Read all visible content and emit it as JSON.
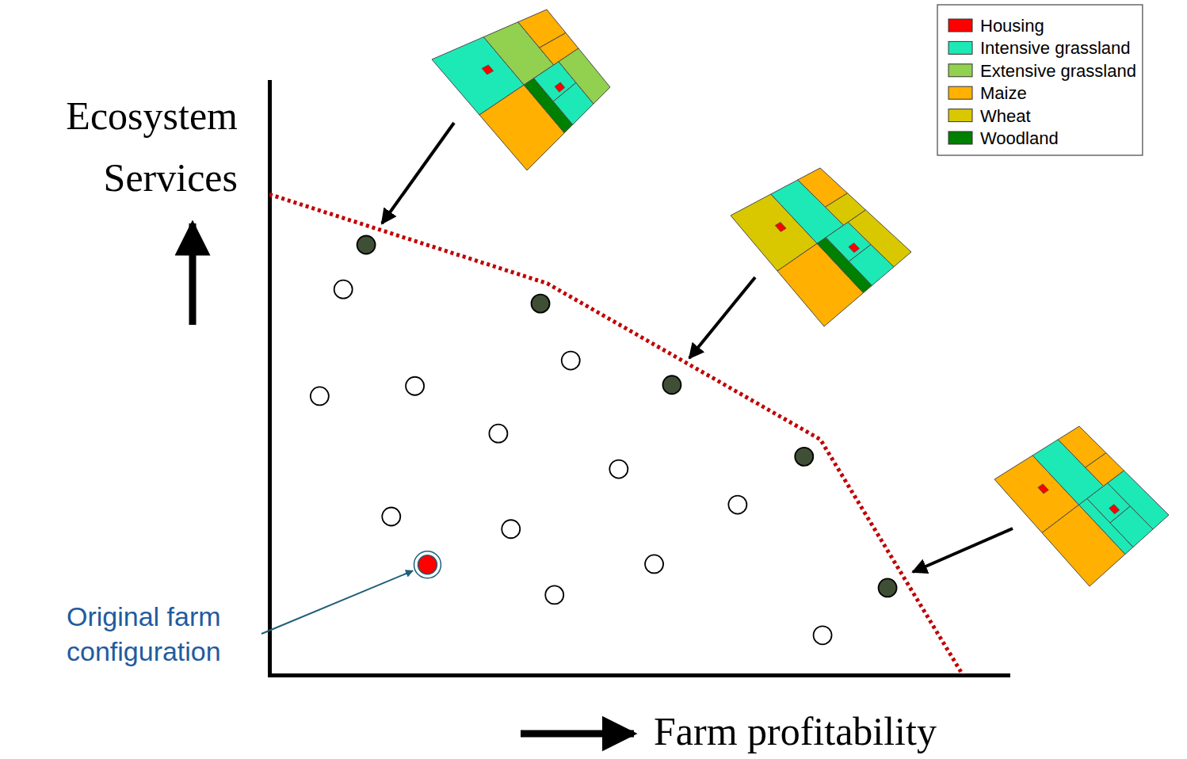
{
  "chart_data": {
    "type": "scatter",
    "x_label": "Farm profitability",
    "y_label": "Ecosystem Services",
    "annotation": "Original farm configuration",
    "xlim": [
      0,
      100
    ],
    "ylim": [
      0,
      100
    ],
    "tick_labels": false,
    "legend": "upper right",
    "series": [
      {
        "type": "scatter",
        "marker": "circle",
        "color": "#ffffff",
        "x": [
          10.0,
          6.8,
          19.7,
          40.8,
          31.0,
          47.3,
          16.5,
          32.7,
          63.4,
          52.1,
          38.6,
          74.9
        ],
        "values": [
          65.0,
          47.0,
          48.7,
          53.0,
          40.7,
          34.7,
          26.7,
          24.6,
          28.7,
          18.7,
          13.5,
          6.7
        ]
      },
      {
        "type": "scatter",
        "marker": "circle",
        "color": "#3f4f35",
        "x": [
          13.1,
          36.7,
          54.5,
          72.4,
          83.7
        ],
        "values": [
          72.5,
          62.6,
          48.9,
          36.8,
          14.7
        ]
      },
      {
        "type": "scatter",
        "marker": "ringed-circle",
        "color": "#ff0000",
        "x": [
          21.4
        ],
        "values": [
          18.6
        ]
      },
      {
        "type": "line",
        "line_style": "dotted",
        "color": "#c00000",
        "x": [
          0,
          37.6,
          74.6,
          93.9
        ],
        "values": [
          81.0,
          66.0,
          39.7,
          0
        ]
      }
    ],
    "land_use": [
      {
        "name": "Housing",
        "color": "#ff0000"
      },
      {
        "name": "Intensive grassland",
        "color": "#1de9b6"
      },
      {
        "name": "Extensive grassland",
        "color": "#92d050"
      },
      {
        "name": "Maize",
        "color": "#ffb000"
      },
      {
        "name": "Wheat",
        "color": "#d9c800"
      },
      {
        "name": "Woodland",
        "color": "#008000"
      }
    ]
  }
}
